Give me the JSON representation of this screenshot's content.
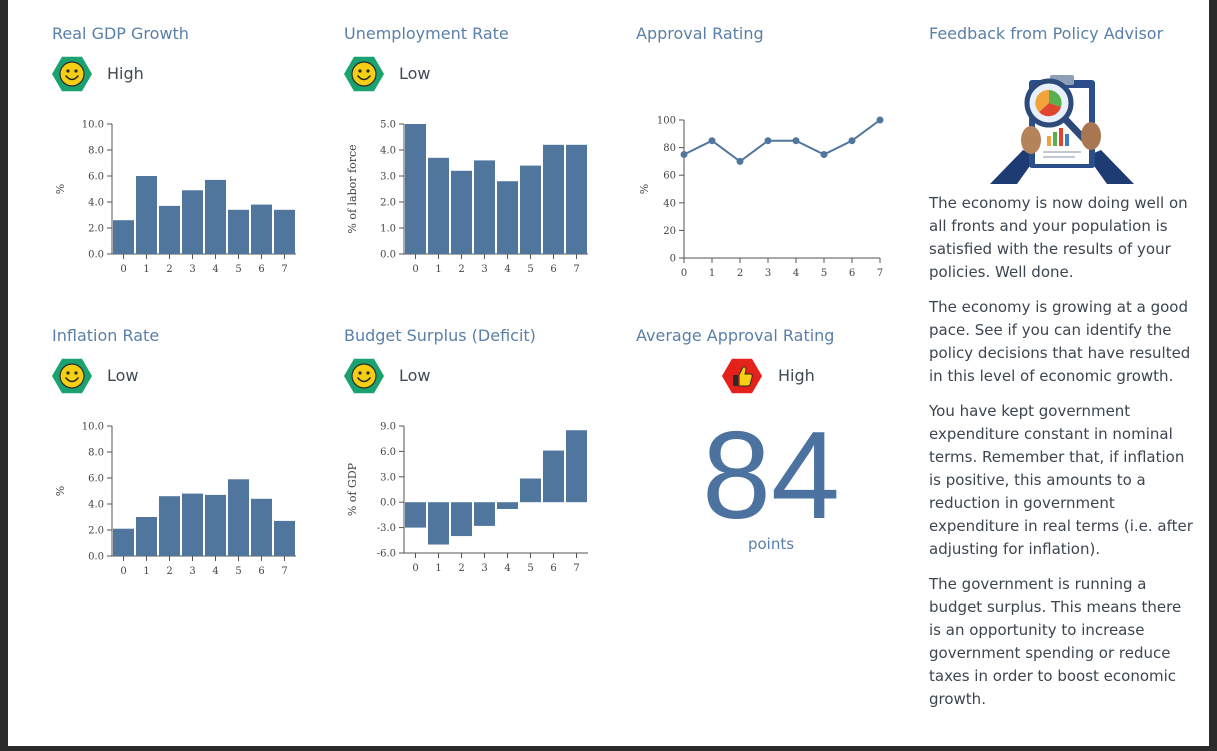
{
  "panels": {
    "gdp": {
      "title": "Real GDP Growth",
      "status": "High",
      "icon": "smiley-icon"
    },
    "unemployment": {
      "title": "Unemployment Rate",
      "status": "Low",
      "icon": "smiley-icon"
    },
    "approval": {
      "title": "Approval Rating"
    },
    "inflation": {
      "title": "Inflation Rate",
      "status": "Low",
      "icon": "smiley-icon"
    },
    "budget": {
      "title": "Budget Surplus (Deficit)",
      "status": "Low",
      "icon": "smiley-icon"
    },
    "average": {
      "title": "Average Approval Rating",
      "status": "High",
      "icon": "thumbs-up-icon",
      "value": "84",
      "unit": "points"
    },
    "feedback": {
      "title": "Feedback from Policy Advisor",
      "icon": "advisor-clipboard-icon",
      "paragraphs": [
        "The economy is now doing well on all fronts and your population is satisfied with the results of your policies. Well done.",
        "The economy is growing at a good pace. See if you can identify the policy decisions that have resulted in this level of economic growth.",
        "You have kept government expenditure constant in nominal terms. Remember that, if inflation is positive, this amounts to a reduction in government expenditure in real terms (i.e. after adjusting for inflation).",
        "The government is running a budget surplus. This means there is an opportunity to increase government spending or reduce taxes in order to boost economic growth."
      ]
    }
  },
  "colors": {
    "bar": "#51769e",
    "title": "#5a7fa8",
    "good_badge": "#1aa370",
    "bad_badge": "#e4221b",
    "smiley": "#f4cf13"
  },
  "chart_data": [
    {
      "id": "gdp",
      "type": "bar",
      "x": [
        0,
        1,
        2,
        3,
        4,
        5,
        6,
        7
      ],
      "values": [
        2.6,
        6.0,
        3.7,
        4.9,
        5.7,
        3.4,
        3.8,
        3.4
      ],
      "ylabel": "%",
      "ylim": [
        0,
        10
      ],
      "yticks": [
        "10.0",
        "8.0",
        "6.0",
        "4.0",
        "2.0",
        "0.0"
      ]
    },
    {
      "id": "unemployment",
      "type": "bar",
      "x": [
        0,
        1,
        2,
        3,
        4,
        5,
        6,
        7
      ],
      "values": [
        5.0,
        3.7,
        3.2,
        3.6,
        2.8,
        3.4,
        4.2,
        4.2
      ],
      "ylabel": "% of labor force",
      "ylim": [
        0,
        5
      ],
      "yticks": [
        "5.0",
        "4.0",
        "3.0",
        "2.0",
        "1.0",
        "0.0"
      ]
    },
    {
      "id": "approval",
      "type": "line",
      "x": [
        0,
        1,
        2,
        3,
        4,
        5,
        6,
        7
      ],
      "values": [
        75,
        85,
        70,
        85,
        85,
        75,
        85,
        100
      ],
      "ylabel": "%",
      "ylim": [
        0,
        100
      ],
      "yticks": [
        "100",
        "80",
        "60",
        "40",
        "20",
        "0"
      ]
    },
    {
      "id": "inflation",
      "type": "bar",
      "x": [
        0,
        1,
        2,
        3,
        4,
        5,
        6,
        7
      ],
      "values": [
        2.1,
        3.0,
        4.6,
        4.8,
        4.7,
        5.9,
        4.4,
        2.7
      ],
      "ylabel": "%",
      "ylim": [
        0,
        10
      ],
      "yticks": [
        "10.0",
        "8.0",
        "6.0",
        "4.0",
        "2.0",
        "0.0"
      ]
    },
    {
      "id": "budget",
      "type": "bar",
      "x": [
        0,
        1,
        2,
        3,
        4,
        5,
        6,
        7
      ],
      "values": [
        -3.0,
        -5.0,
        -4.0,
        -2.8,
        -0.8,
        2.8,
        6.1,
        8.5
      ],
      "ylabel": "% of GDP",
      "ylim": [
        -6,
        9
      ],
      "yticks": [
        "9.0",
        "6.0",
        "3.0",
        "0.0",
        "-3.0",
        "-6.0"
      ]
    }
  ]
}
